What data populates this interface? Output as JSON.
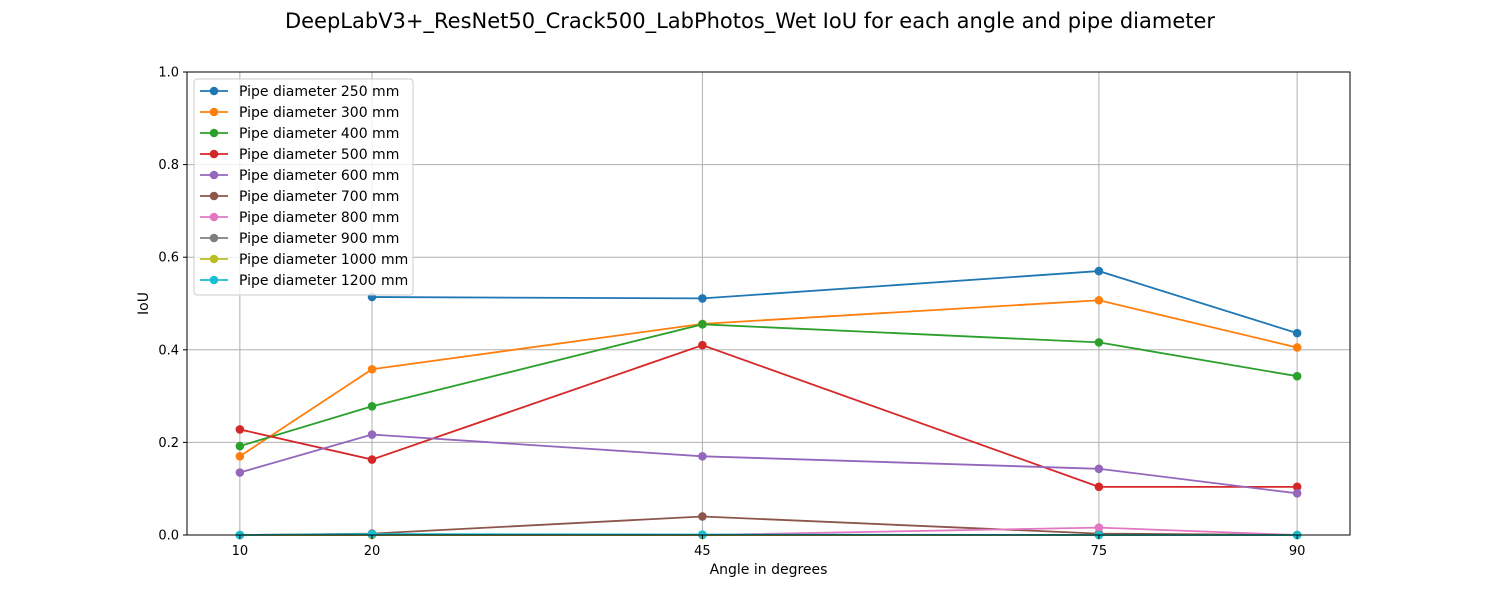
{
  "chart_data": {
    "type": "line",
    "title": "DeepLabV3+_ResNet50_Crack500_LabPhotos_Wet IoU for each angle and pipe diameter",
    "xlabel": "Angle in degrees",
    "ylabel": "IoU",
    "x": [
      10,
      20,
      45,
      75,
      90
    ],
    "xlim": [
      6,
      94
    ],
    "ylim": [
      0,
      1
    ],
    "yticks": [
      "0.0",
      "0.2",
      "0.4",
      "0.6",
      "0.8",
      "1.0"
    ],
    "xticks": [
      "10",
      "20",
      "45",
      "75",
      "90"
    ],
    "grid": true,
    "legend_position": "top-left",
    "series": [
      {
        "name": "Pipe diameter 250 mm",
        "color": "#1f77b4",
        "values": [
          null,
          0.514,
          0.511,
          0.57,
          0.436
        ]
      },
      {
        "name": "Pipe diameter 300 mm",
        "color": "#ff7f0e",
        "values": [
          0.17,
          0.358,
          0.456,
          0.507,
          0.405
        ]
      },
      {
        "name": "Pipe diameter 400 mm",
        "color": "#2ca02c",
        "values": [
          0.192,
          0.278,
          0.455,
          0.416,
          0.343
        ]
      },
      {
        "name": "Pipe diameter 500 mm",
        "color": "#d62728",
        "values": [
          0.228,
          0.163,
          0.41,
          0.104,
          0.104
        ]
      },
      {
        "name": "Pipe diameter 600 mm",
        "color": "#9467bd",
        "values": [
          0.135,
          0.217,
          0.17,
          0.143,
          0.09
        ]
      },
      {
        "name": "Pipe diameter 700 mm",
        "color": "#8c564b",
        "values": [
          0.0,
          0.003,
          0.04,
          0.003,
          0.0
        ]
      },
      {
        "name": "Pipe diameter 800 mm",
        "color": "#e377c2",
        "values": [
          0.0,
          0.0,
          0.0,
          0.016,
          0.0
        ]
      },
      {
        "name": "Pipe diameter 900 mm",
        "color": "#7f7f7f",
        "values": [
          0.0,
          0.0,
          0.0,
          0.0,
          0.0
        ]
      },
      {
        "name": "Pipe diameter 1000 mm",
        "color": "#bcbd22",
        "values": [
          0.0,
          0.0,
          0.0,
          0.0,
          0.0
        ]
      },
      {
        "name": "Pipe diameter 1200 mm",
        "color": "#17becf",
        "values": [
          0.0,
          0.002,
          0.001,
          0.0,
          0.0
        ]
      }
    ]
  }
}
